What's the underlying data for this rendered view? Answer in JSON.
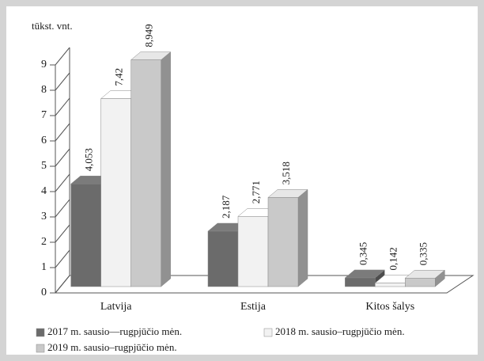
{
  "chart_data": {
    "type": "bar3d",
    "y_label": "tūkst. vnt.",
    "categories": [
      "Latvija",
      "Estija",
      "Kitos šalys"
    ],
    "series": [
      {
        "name": "2017 m. sausio—rugpjūčio mėn.",
        "color": "#6b6b6b",
        "values": [
          4.053,
          2.187,
          0.345
        ],
        "value_labels": [
          "4,053",
          "2,187",
          "0,345"
        ]
      },
      {
        "name": "2018 m. sausio–rugpjūčio mėn.",
        "color": "#f2f2f2",
        "values": [
          7.42,
          2.771,
          0.142
        ],
        "value_labels": [
          "7,42",
          "2,771",
          "0,142"
        ]
      },
      {
        "name": "2019 m. sausio–rugpjūčio mėn.",
        "color": "#c9c9c9",
        "values": [
          8.949,
          3.518,
          0.335
        ],
        "value_labels": [
          "8,949",
          "3,518",
          "0,335"
        ]
      }
    ],
    "ylim": [
      0,
      9
    ],
    "yticks": [
      0,
      1,
      2,
      3,
      4,
      5,
      6,
      7,
      8,
      9
    ]
  }
}
